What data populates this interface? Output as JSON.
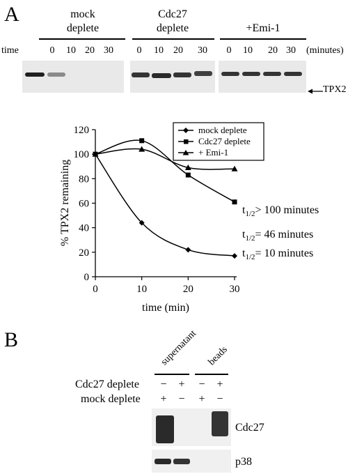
{
  "panelA": {
    "letter": "A",
    "row_label": "time",
    "units": "(minutes)",
    "groups": [
      {
        "line1": "mock",
        "line2": "deplete",
        "times": [
          "0",
          "10",
          "20",
          "30"
        ]
      },
      {
        "line1": "Cdc27",
        "line2": "deplete",
        "times": [
          "0",
          "10",
          "20",
          "30"
        ]
      },
      {
        "line1": "+Emi-1",
        "line2": "",
        "times": [
          "0",
          "10",
          "20",
          "30"
        ]
      }
    ],
    "protein_label": "TPX2",
    "band_intensity": [
      [
        0.95,
        0.45,
        0.05,
        0.0
      ],
      [
        0.85,
        0.9,
        0.85,
        0.8
      ],
      [
        0.85,
        0.85,
        0.85,
        0.85
      ]
    ]
  },
  "chart_data": {
    "type": "line",
    "xlabel": "time (min)",
    "ylabel": "% TPX2 remaining",
    "xlim": [
      0,
      30
    ],
    "ylim": [
      0,
      120
    ],
    "xticks": [
      "0",
      "10",
      "20",
      "30"
    ],
    "yticks": [
      "0",
      "20",
      "40",
      "60",
      "80",
      "100",
      "120"
    ],
    "legend_position": "top-right",
    "x": [
      0,
      10,
      20,
      30
    ],
    "series": [
      {
        "name": "mock deplete",
        "marker": "diamond",
        "values": [
          100,
          44,
          22,
          17
        ]
      },
      {
        "name": "Cdc27 deplete",
        "marker": "square",
        "values": [
          100,
          111,
          83,
          61
        ]
      },
      {
        "name": "+ Emi-1",
        "marker": "triangle",
        "values": [
          100,
          104,
          89,
          88
        ]
      }
    ],
    "annotations": [
      {
        "prefix": "t",
        "sub": "1/2",
        "suffix": "> 100 minutes",
        "series": "+ Emi-1"
      },
      {
        "prefix": "t",
        "sub": "1/2",
        "suffix": "= 46 minutes",
        "series": "Cdc27 deplete"
      },
      {
        "prefix": "t",
        "sub": "1/2",
        "suffix": "= 10 minutes",
        "series": "mock deplete"
      }
    ]
  },
  "panelB": {
    "letter": "B",
    "col_groups": [
      "supernatant",
      "beads"
    ],
    "rows": [
      {
        "label": "Cdc27 deplete",
        "signs": [
          "−",
          "+",
          "−",
          "+"
        ]
      },
      {
        "label": "mock deplete",
        "signs": [
          "+",
          "−",
          "+",
          "−"
        ]
      }
    ],
    "blots": [
      {
        "label": "Cdc27",
        "intensity": [
          0.9,
          0.05,
          0.0,
          0.85
        ]
      },
      {
        "label": "p38",
        "intensity": [
          0.9,
          0.85,
          0.0,
          0.0
        ]
      }
    ]
  }
}
